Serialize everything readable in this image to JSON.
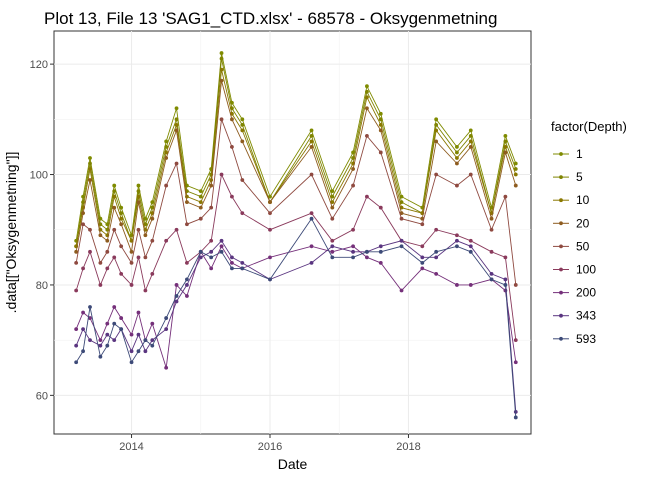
{
  "chart_data": {
    "type": "line",
    "title": "Plot 13, File 13 'SAG1_CTD.xlsx' - 68578  -  Oksygenmetning",
    "xlabel": "Date",
    "ylabel": ".data[[\"Oksygenmetning\"]]",
    "x_ticks": [
      {
        "value": 2014,
        "label": "2014"
      },
      {
        "value": 2016,
        "label": "2016"
      },
      {
        "value": 2018,
        "label": "2018"
      }
    ],
    "y_ticks": [
      {
        "value": 60,
        "label": "60"
      },
      {
        "value": 80,
        "label": "80"
      },
      {
        "value": 100,
        "label": "100"
      },
      {
        "value": 120,
        "label": "120"
      }
    ],
    "xlim": [
      2012.88,
      2019.77
    ],
    "ylim": [
      53.0,
      126.0
    ],
    "grid": true,
    "legend": {
      "title": "factor(Depth)",
      "position": "right"
    },
    "x": [
      2013.2,
      2013.3,
      2013.4,
      2013.55,
      2013.65,
      2013.75,
      2013.85,
      2014.0,
      2014.1,
      2014.2,
      2014.3,
      2014.5,
      2014.65,
      2014.8,
      2015.0,
      2015.15,
      2015.3,
      2015.45,
      2015.6,
      2016.0,
      2016.6,
      2016.9,
      2017.2,
      2017.4,
      2017.6,
      2017.9,
      2018.2,
      2018.4,
      2018.7,
      2018.9,
      2019.2,
      2019.4,
      2019.55
    ],
    "series": [
      {
        "name": "1",
        "color": "#7f8b00",
        "values": [
          88,
          96,
          103,
          92,
          91,
          98,
          94,
          89,
          98,
          92,
          95,
          106,
          112,
          98,
          97,
          101,
          122,
          113,
          110,
          96,
          108,
          97,
          104,
          116,
          111,
          96,
          94,
          110,
          105,
          108,
          94,
          107,
          102
        ]
      },
      {
        "name": "5",
        "color": "#7f8400",
        "values": [
          87,
          95,
          102,
          91,
          90,
          97,
          93,
          88,
          97,
          91,
          94,
          105,
          110,
          97,
          96,
          100,
          121,
          112,
          109,
          95,
          107,
          96,
          103,
          115,
          110,
          95,
          93,
          109,
          104,
          107,
          93,
          106,
          101
        ]
      },
      {
        "name": "10",
        "color": "#8a7800",
        "values": [
          87,
          94,
          101,
          90,
          89,
          96,
          92,
          88,
          96,
          90,
          93,
          104,
          109,
          96,
          95,
          99,
          119,
          111,
          108,
          95,
          106,
          95,
          102,
          114,
          109,
          94,
          93,
          108,
          103,
          106,
          93,
          105,
          100
        ]
      },
      {
        "name": "20",
        "color": "#8e5c1f",
        "values": [
          86,
          93,
          99,
          89,
          88,
          94,
          91,
          86,
          95,
          89,
          92,
          103,
          108,
          95,
          94,
          98,
          117,
          110,
          106,
          95,
          105,
          94,
          101,
          112,
          108,
          93,
          92,
          106,
          102,
          105,
          92,
          104,
          98
        ]
      },
      {
        "name": "50",
        "color": "#8f4a40",
        "values": [
          84,
          91,
          90,
          84,
          86,
          90,
          87,
          84,
          90,
          85,
          88,
          98,
          102,
          91,
          92,
          94,
          110,
          105,
          99,
          93,
          100,
          92,
          98,
          107,
          104,
          92,
          91,
          100,
          98,
          100,
          90,
          96,
          80
        ]
      },
      {
        "name": "100",
        "color": "#8a3a5c",
        "values": [
          79,
          83,
          86,
          80,
          83,
          85,
          82,
          80,
          85,
          79,
          82,
          88,
          90,
          84,
          86,
          88,
          100,
          96,
          93,
          90,
          93,
          88,
          90,
          96,
          94,
          88,
          87,
          90,
          89,
          88,
          86,
          85,
          70
        ]
      },
      {
        "name": "200",
        "color": "#75307a",
        "values": [
          72,
          75,
          74,
          70,
          73,
          76,
          74,
          71,
          75,
          70,
          73,
          65,
          80,
          78,
          86,
          83,
          87,
          84,
          83,
          85,
          87,
          86,
          87,
          85,
          84,
          79,
          83,
          82,
          80,
          80,
          81,
          79,
          66
        ]
      },
      {
        "name": "343",
        "color": "#5a3580",
        "values": [
          69,
          72,
          70,
          69,
          71,
          70,
          72,
          68,
          71,
          68,
          70,
          72,
          77,
          80,
          85,
          86,
          88,
          85,
          84,
          81,
          84,
          87,
          86,
          86,
          87,
          88,
          85,
          85,
          88,
          87,
          82,
          81,
          57
        ]
      },
      {
        "name": "593",
        "color": "#3d4a78",
        "values": [
          66,
          68,
          76,
          67,
          69,
          73,
          72,
          66,
          68,
          70,
          69,
          74,
          78,
          81,
          86,
          85,
          86,
          83,
          83,
          81,
          92,
          85,
          85,
          86,
          86,
          87,
          84,
          86,
          87,
          86,
          81,
          80,
          56
        ]
      }
    ]
  }
}
